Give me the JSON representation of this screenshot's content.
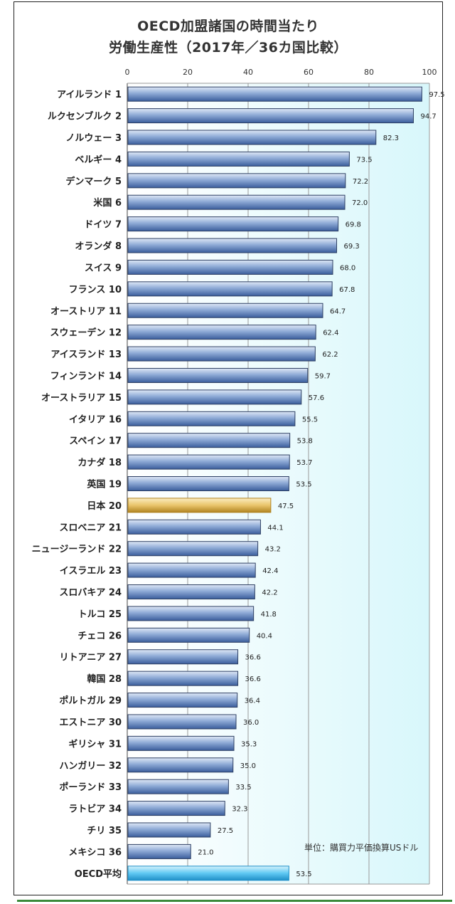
{
  "title_line1": "OECD加盟諸国の時間当たり",
  "title_line2": "労働生産性（2017年／36カ国比較）",
  "unit_note": "単位：購買力平価換算USドル",
  "colors": {
    "bar": "#8eaad6",
    "bar_dark": "#3a5d9c",
    "japan": "#e9c46a",
    "japan_dark": "#b08320",
    "oecd": "#5fc8f3",
    "oecd_dark": "#1f8fc8",
    "plot_bg_start": "#ffffff",
    "plot_bg_end": "#d8f7fb"
  },
  "chart_data": {
    "type": "bar",
    "orientation": "horizontal",
    "xlim": [
      0,
      100
    ],
    "xticks": [
      0,
      20,
      40,
      60,
      80,
      100
    ],
    "grid": true,
    "categories": [
      "アイルランド 1",
      "ルクセンブルク 2",
      "ノルウェー 3",
      "ベルギー 4",
      "デンマーク 5",
      "米国 6",
      "ドイツ 7",
      "オランダ 8",
      "スイス 9",
      "フランス 10",
      "オーストリア 11",
      "スウェーデン 12",
      "アイスランド 13",
      "フィンランド 14",
      "オーストラリア 15",
      "イタリア 16",
      "スペイン 17",
      "カナダ 18",
      "英国 19",
      "日本 20",
      "スロベニア 21",
      "ニュージーランド 22",
      "イスラエル 23",
      "スロバキア 24",
      "トルコ 25",
      "チェコ 26",
      "リトアニア 27",
      "韓国 28",
      "ポルトガル 29",
      "エストニア 30",
      "ギリシャ 31",
      "ハンガリー 32",
      "ポーランド 33",
      "ラトビア 34",
      "チリ 35",
      "メキシコ 36",
      "OECD平均"
    ],
    "values": [
      97.5,
      94.7,
      82.3,
      73.5,
      72.2,
      72.0,
      69.8,
      69.3,
      68.0,
      67.8,
      64.7,
      62.4,
      62.2,
      59.7,
      57.6,
      55.5,
      53.8,
      53.7,
      53.5,
      47.5,
      44.1,
      43.2,
      42.4,
      42.2,
      41.8,
      40.4,
      36.6,
      36.6,
      36.4,
      36.0,
      35.3,
      35.0,
      33.5,
      32.3,
      27.5,
      21.0,
      53.5
    ],
    "value_labels": [
      "97.5",
      "94.7",
      "82.3",
      "73.5",
      "72.2",
      "72.0",
      "69.8",
      "69.3",
      "68.0",
      "67.8",
      "64.7",
      "62.4",
      "62.2",
      "59.7",
      "57.6",
      "55.5",
      "53.8",
      "53.7",
      "53.5",
      "47.5",
      "44.1",
      "43.2",
      "42.4",
      "42.2",
      "41.8",
      "40.4",
      "36.6",
      "36.6",
      "36.4",
      "36.0",
      "35.3",
      "35.0",
      "33.5",
      "32.3",
      "27.5",
      "21.0",
      "53.5"
    ],
    "highlight": {
      "日本 20": "japan",
      "OECD平均": "oecd"
    }
  }
}
